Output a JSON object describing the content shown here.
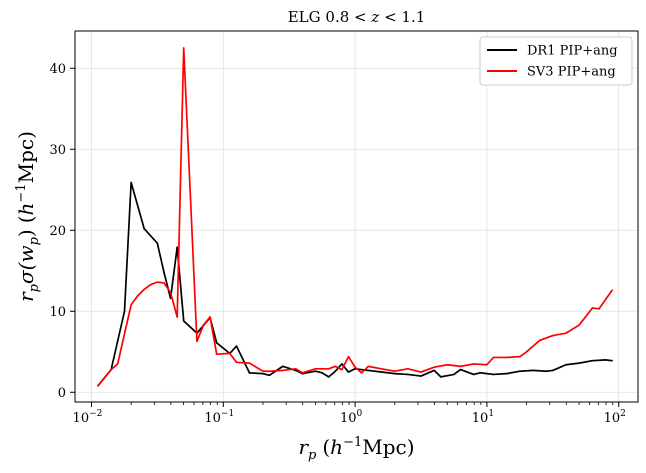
{
  "chart_data": {
    "type": "line",
    "title_prefix": "ELG 0.8 <",
    "title_var": "z",
    "title_suffix": "< 1.1",
    "xlabel": {
      "var": "r",
      "sub": "p",
      "open": "(",
      "h": "h",
      "sup": "−1",
      "unit": "Mpc)"
    },
    "ylabel": {
      "r": "r",
      "rsub": "p",
      "sigma": "σ(",
      "w": "w",
      "wsub": "p",
      "close": ")",
      "open": "(",
      "h": "h",
      "sup": "−1",
      "unit": "Mpc)"
    },
    "xscale": "log",
    "xlim": [
      0.0075,
      140
    ],
    "ylim": [
      -1.2,
      44.6
    ],
    "xticks": [
      0.01,
      0.1,
      1,
      10,
      100
    ],
    "xtick_labels": [
      {
        "base": "10",
        "exp": "−2"
      },
      {
        "base": "10",
        "exp": "−1"
      },
      {
        "base": "10",
        "exp": "0"
      },
      {
        "base": "10",
        "exp": "1"
      },
      {
        "base": "10",
        "exp": "2"
      }
    ],
    "yticks": [
      0,
      10,
      20,
      30,
      40
    ],
    "ytick_labels": [
      "0",
      "10",
      "20",
      "30",
      "40"
    ],
    "grid": true,
    "legend_position": "top-right",
    "series": [
      {
        "name": "DR1 PIP+ang",
        "color": "#000000",
        "x": [
          0.0112,
          0.0141,
          0.0178,
          0.02,
          0.0251,
          0.0316,
          0.0355,
          0.0398,
          0.0447,
          0.0501,
          0.0631,
          0.0794,
          0.0891,
          0.112,
          0.126,
          0.158,
          0.2,
          0.224,
          0.282,
          0.355,
          0.398,
          0.501,
          0.562,
          0.631,
          0.708,
          0.794,
          0.891,
          1.0,
          1.26,
          1.58,
          2.0,
          2.51,
          3.16,
          3.98,
          4.47,
          5.62,
          6.31,
          7.94,
          8.91,
          10.0,
          11.2,
          14.1,
          17.8,
          22.4,
          28.2,
          31.6,
          39.8,
          50.1,
          63.1,
          79.4,
          89.1
        ],
        "y": [
          0.8,
          2.8,
          10.0,
          25.9,
          20.2,
          18.4,
          14.8,
          11.6,
          17.9,
          8.8,
          7.3,
          9.2,
          6.1,
          4.8,
          5.7,
          2.4,
          2.3,
          2.1,
          3.2,
          2.7,
          2.3,
          2.6,
          2.4,
          1.9,
          2.6,
          3.5,
          2.5,
          2.9,
          2.7,
          2.5,
          2.3,
          2.2,
          2.0,
          2.7,
          1.9,
          2.2,
          2.8,
          2.2,
          2.4,
          2.3,
          2.2,
          2.3,
          2.6,
          2.7,
          2.6,
          2.7,
          3.4,
          3.6,
          3.9,
          4.0,
          3.9
        ]
      },
      {
        "name": "SV3 PIP+ang",
        "color": "#ff0000",
        "x": [
          0.0112,
          0.0141,
          0.0158,
          0.02,
          0.0224,
          0.0251,
          0.0282,
          0.0316,
          0.0355,
          0.0398,
          0.0447,
          0.0501,
          0.0631,
          0.0708,
          0.0794,
          0.0891,
          0.112,
          0.126,
          0.158,
          0.2,
          0.224,
          0.282,
          0.355,
          0.398,
          0.501,
          0.631,
          0.708,
          0.794,
          0.891,
          1.0,
          1.12,
          1.26,
          1.58,
          2.0,
          2.51,
          3.16,
          3.98,
          5.01,
          6.31,
          7.94,
          10.0,
          11.2,
          14.1,
          17.8,
          20.0,
          25.1,
          31.6,
          39.8,
          50.1,
          63.1,
          70.8,
          89.1
        ],
        "y": [
          0.8,
          2.8,
          3.5,
          10.8,
          11.9,
          12.7,
          13.3,
          13.6,
          13.5,
          12.3,
          9.3,
          42.5,
          6.3,
          8.3,
          9.3,
          4.7,
          4.8,
          3.7,
          3.6,
          2.6,
          2.6,
          2.7,
          2.9,
          2.4,
          2.9,
          2.9,
          3.2,
          2.8,
          4.4,
          3.1,
          2.4,
          3.2,
          2.9,
          2.6,
          2.9,
          2.5,
          3.1,
          3.4,
          3.2,
          3.5,
          3.4,
          4.3,
          4.3,
          4.4,
          5.0,
          6.4,
          7.0,
          7.3,
          8.3,
          10.4,
          10.3,
          12.6
        ]
      }
    ]
  }
}
